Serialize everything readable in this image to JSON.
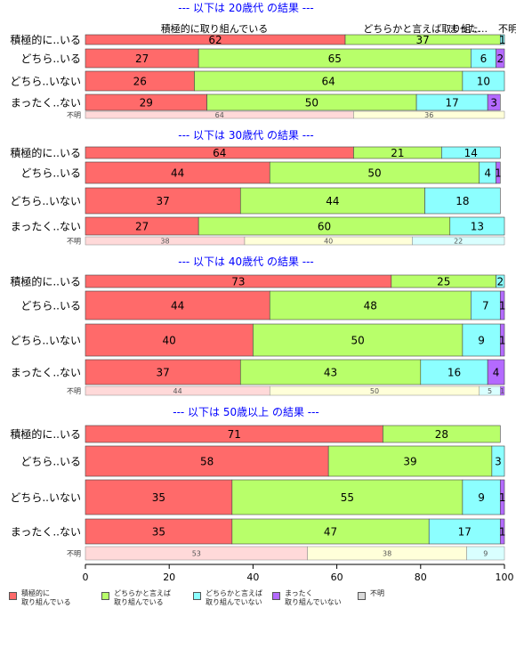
{
  "chart_data": {
    "type": "bar",
    "orientation": "horizontal",
    "stacked": true,
    "xlim": [
      0,
      100
    ],
    "x_ticks": [
      "0",
      "20",
      "40",
      "60",
      "80",
      "100"
    ],
    "colors": {
      "seg1": "#ff6a6a",
      "seg2": "#b8ff6a",
      "seg3": "#8cffff",
      "seg4": "#b46aff",
      "unknown_seg1": "#ffd9d9",
      "unknown_seg2": "#ffffd9",
      "unknown_seg3": "#d9ffff",
      "title": "#0000ff"
    },
    "legend": {
      "placement": "bottom",
      "items": [
        {
          "label": "積極的に\n取り組んでいる",
          "color": "#ff6a6a"
        },
        {
          "label": "どちらかと言えば\n取り組んでいる",
          "color": "#b8ff6a"
        },
        {
          "label": "どちらかと言えば\n取り組んでいない",
          "color": "#8cffff"
        },
        {
          "label": "まったく\n取り組んでいない",
          "color": "#b46aff"
        },
        {
          "label": "不明",
          "color": "#d9d9d9"
        }
      ]
    },
    "header_labels": [
      "積極的に取り組んでいる",
      "どちらかと言えば取り組...",
      "まった...",
      "不明"
    ],
    "panels": [
      {
        "title": "--- 以下は 20歳代 の結果 ---",
        "rows": [
          {
            "label": "積極的に..いる",
            "values": [
              62,
              37,
              1,
              0
            ]
          },
          {
            "label": "どちら..いる",
            "values": [
              27,
              65,
              6,
              2
            ]
          },
          {
            "label": "どちら..いない",
            "values": [
              26,
              64,
              10,
              0
            ]
          },
          {
            "label": "まったく..ない",
            "values": [
              29,
              50,
              17,
              3
            ]
          }
        ],
        "unknown": {
          "label": "不明",
          "values": [
            64,
            36,
            0
          ]
        }
      },
      {
        "title": "--- 以下は 30歳代 の結果 ---",
        "rows": [
          {
            "label": "積極的に..いる",
            "values": [
              64,
              21,
              14,
              0
            ]
          },
          {
            "label": "どちら..いる",
            "values": [
              44,
              50,
              4,
              1
            ]
          },
          {
            "label": "どちら..いない",
            "values": [
              37,
              44,
              18,
              0
            ]
          },
          {
            "label": "まったく..ない",
            "values": [
              27,
              60,
              13,
              0
            ]
          }
        ],
        "unknown": {
          "label": "不明",
          "values": [
            38,
            40,
            22
          ]
        }
      },
      {
        "title": "--- 以下は 40歳代 の結果 ---",
        "rows": [
          {
            "label": "積極的に..いる",
            "values": [
              73,
              25,
              2,
              0
            ]
          },
          {
            "label": "どちら..いる",
            "values": [
              44,
              48,
              7,
              1
            ]
          },
          {
            "label": "どちら..いない",
            "values": [
              40,
              50,
              9,
              1
            ]
          },
          {
            "label": "まったく..ない",
            "values": [
              37,
              43,
              16,
              4
            ]
          }
        ],
        "unknown": {
          "label": "不明",
          "values": [
            44,
            50,
            5,
            1
          ]
        }
      },
      {
        "title": "--- 以下は 50歳以上 の結果 ---",
        "rows": [
          {
            "label": "積極的に..いる",
            "values": [
              71,
              28,
              0,
              0
            ]
          },
          {
            "label": "どちら..いる",
            "values": [
              58,
              39,
              3,
              0
            ]
          },
          {
            "label": "どちら..いない",
            "values": [
              35,
              55,
              9,
              1
            ]
          },
          {
            "label": "まったく..ない",
            "values": [
              35,
              47,
              17,
              1
            ]
          }
        ],
        "unknown": {
          "label": "不明",
          "values": [
            53,
            38,
            9
          ]
        }
      }
    ]
  }
}
